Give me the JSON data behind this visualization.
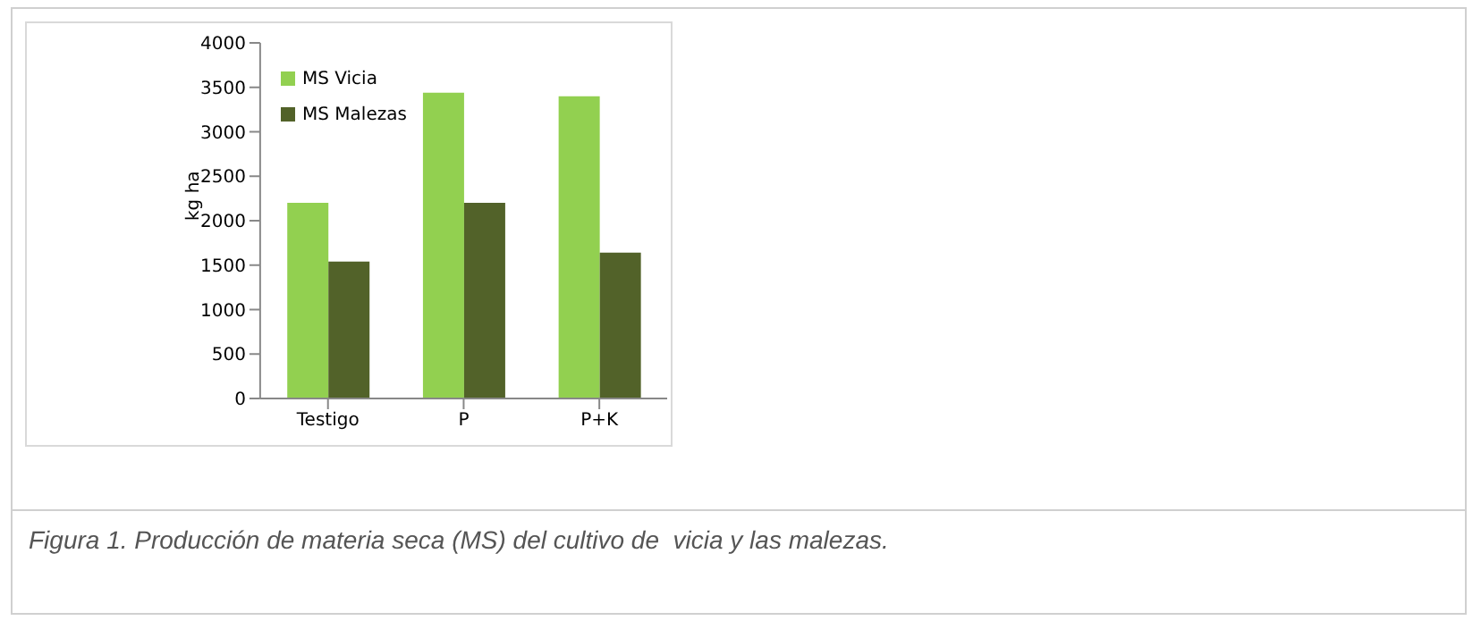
{
  "chart_data": {
    "type": "bar",
    "ylabel": "kg ha",
    "categories": [
      "Testigo",
      "P",
      "P+K"
    ],
    "series": [
      {
        "name": "MS Vicia",
        "color": "#92d050",
        "values": [
          2200,
          3440,
          3400
        ]
      },
      {
        "name": "MS Malezas",
        "color": "#526229",
        "values": [
          1540,
          2200,
          1640
        ]
      }
    ],
    "ylim": [
      0,
      4000
    ],
    "yticks": [
      0,
      500,
      1000,
      1500,
      2000,
      2500,
      3000,
      3500,
      4000
    ],
    "grid": false,
    "legend": "top left",
    "annotations": [
      "Figura 1. Producción de materia seca (MS) del cultivo de  vicia y las malezas."
    ]
  }
}
